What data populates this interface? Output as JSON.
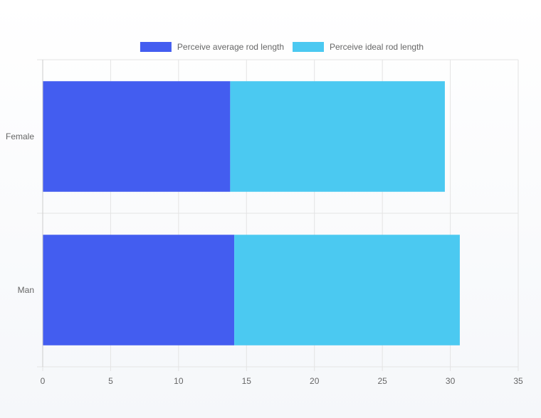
{
  "chart_data": {
    "type": "bar",
    "orientation": "horizontal",
    "stacked": true,
    "categories": [
      "Female",
      "Man"
    ],
    "series": [
      {
        "name": "Perceive average rod length",
        "color": "#435df0",
        "values": [
          13.8,
          14.1
        ]
      },
      {
        "name": "Perceive ideal rod length",
        "color": "#4bc9f1",
        "values": [
          15.8,
          16.6
        ]
      }
    ],
    "xlim": [
      0,
      35
    ],
    "xticks": [
      "0",
      "5",
      "10",
      "15",
      "20",
      "25",
      "30",
      "35"
    ],
    "grid": true,
    "legend": "top-center"
  }
}
